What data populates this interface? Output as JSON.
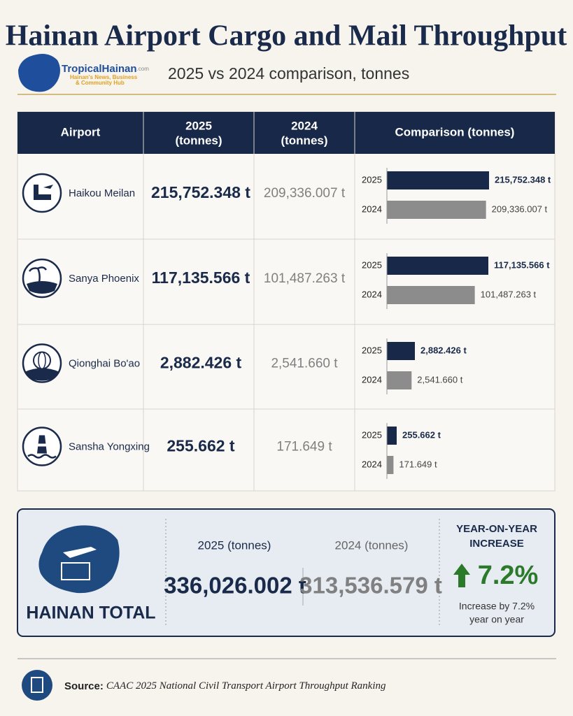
{
  "header": {
    "title": "Hainan Airport Cargo and Mail Throughput",
    "subtitle": "2025 vs 2024 comparison, tonnes",
    "logo": {
      "name": "TropicalHainan",
      "domain": ".com",
      "tagline": [
        "Hainan's News, Business",
        "& Community Hub"
      ]
    }
  },
  "table": {
    "columns": [
      [
        "Airport"
      ],
      [
        "2025",
        "(tonnes)"
      ],
      [
        "2024",
        "(tonnes)"
      ],
      [
        "Comparison (tonnes)"
      ]
    ],
    "rows": [
      {
        "airport": "Haikou Meilan",
        "v2025": 215752.348,
        "l2025": "215,752.348 t",
        "v2024": 209336.007,
        "l2024": "209,336.007 t"
      },
      {
        "airport": "Sanya Phoenix",
        "v2025": 117135.566,
        "l2025": "117,135.566 t",
        "v2024": 101487.263,
        "l2024": "101,487.263 t"
      },
      {
        "airport": "Qionghai Bo'ao",
        "v2025": 2882.426,
        "l2025": "2,882.426 t",
        "v2024": 2541.66,
        "l2024": "2,541.660 t"
      },
      {
        "airport": "Sansha Yongxing",
        "v2025": 255.662,
        "l2025": "255.662 t",
        "v2024": 171.649,
        "l2024": "171.649 t"
      }
    ]
  },
  "total": {
    "title": "HAINAN TOTAL",
    "col2025": "2025 (tonnes)",
    "col2024": "2024 (tonnes)",
    "v2025": "336,026.002 t",
    "v2024": "313,536.579 t",
    "yoy_title": [
      "YEAR-ON-YEAR",
      "INCREASE"
    ],
    "yoy": "7.2%",
    "yoy_note": [
      "Increase by 7.2%",
      "year on year"
    ]
  },
  "source": {
    "label": "Source:",
    "text": "CAAC 2025 National Civil Transport Airport Throughput Ranking"
  }
}
